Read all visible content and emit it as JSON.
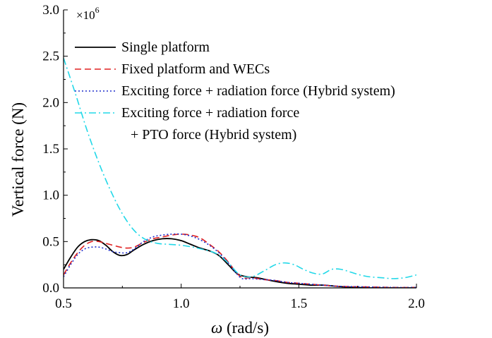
{
  "chart_data": {
    "type": "line",
    "xlabel_symbol": "ω",
    "xlabel_unit": " (rad/s)",
    "ylabel": "Vertical force (N)",
    "xlim": [
      0.5,
      2.0
    ],
    "ylim": [
      0.0,
      3.0
    ],
    "x_ticks": [
      "0.5",
      "1.0",
      "1.5",
      "2.0"
    ],
    "y_ticks": [
      "0.0",
      "0.5",
      "1.0",
      "1.5",
      "2.0",
      "2.5",
      "3.0"
    ],
    "y_multiplier": {
      "base": "×10",
      "exponent": "6"
    },
    "legend_position": "top-left",
    "grid": false,
    "series": [
      {
        "name": "Single platform",
        "color": "#000000",
        "dash": "solid",
        "x": [
          0.5,
          0.53,
          0.56,
          0.59,
          0.62,
          0.65,
          0.68,
          0.71,
          0.74,
          0.77,
          0.8,
          0.84,
          0.88,
          0.92,
          0.96,
          1.0,
          1.04,
          1.08,
          1.12,
          1.16,
          1.2,
          1.24,
          1.28,
          1.32,
          1.36,
          1.4,
          1.45,
          1.5,
          1.55,
          1.6,
          1.65,
          1.7,
          1.75,
          1.8,
          1.9,
          2.0
        ],
        "y": [
          0.2,
          0.33,
          0.44,
          0.5,
          0.52,
          0.51,
          0.46,
          0.39,
          0.35,
          0.36,
          0.41,
          0.47,
          0.51,
          0.53,
          0.53,
          0.51,
          0.47,
          0.43,
          0.4,
          0.35,
          0.25,
          0.15,
          0.12,
          0.11,
          0.09,
          0.07,
          0.05,
          0.04,
          0.03,
          0.03,
          0.02,
          0.01,
          0.005,
          0.0,
          0.0,
          0.0
        ]
      },
      {
        "name": "Fixed platform and WECs",
        "color": "#e02020",
        "dash": "dash",
        "x": [
          0.5,
          0.53,
          0.56,
          0.59,
          0.62,
          0.65,
          0.68,
          0.71,
          0.74,
          0.77,
          0.8,
          0.84,
          0.88,
          0.92,
          0.96,
          1.0,
          1.04,
          1.08,
          1.12,
          1.16,
          1.2,
          1.23,
          1.26,
          1.3,
          1.35,
          1.4,
          1.45,
          1.5,
          1.55,
          1.6,
          1.65,
          1.7,
          1.8,
          1.9,
          2.0
        ],
        "y": [
          0.14,
          0.27,
          0.38,
          0.46,
          0.5,
          0.5,
          0.48,
          0.46,
          0.44,
          0.43,
          0.44,
          0.49,
          0.53,
          0.55,
          0.57,
          0.58,
          0.57,
          0.54,
          0.47,
          0.39,
          0.28,
          0.18,
          0.11,
          0.11,
          0.09,
          0.08,
          0.06,
          0.05,
          0.04,
          0.03,
          0.02,
          0.015,
          0.01,
          0.005,
          0.005
        ]
      },
      {
        "name": "Exciting force + radiation force (Hybrid system)",
        "color": "#1f2ecc",
        "dash": "dot",
        "x": [
          0.5,
          0.53,
          0.56,
          0.59,
          0.62,
          0.65,
          0.68,
          0.71,
          0.74,
          0.77,
          0.8,
          0.84,
          0.88,
          0.92,
          0.96,
          1.0,
          1.04,
          1.08,
          1.12,
          1.16,
          1.2,
          1.23,
          1.26,
          1.3,
          1.35,
          1.4,
          1.45,
          1.5,
          1.55,
          1.6,
          1.65,
          1.7,
          1.8,
          1.9,
          2.0
        ],
        "y": [
          0.12,
          0.25,
          0.36,
          0.42,
          0.44,
          0.44,
          0.42,
          0.39,
          0.38,
          0.38,
          0.42,
          0.5,
          0.55,
          0.57,
          0.58,
          0.58,
          0.56,
          0.52,
          0.46,
          0.38,
          0.27,
          0.17,
          0.1,
          0.1,
          0.09,
          0.08,
          0.06,
          0.05,
          0.04,
          0.03,
          0.02,
          0.015,
          0.01,
          0.005,
          0.005
        ]
      },
      {
        "name": "Exciting force + radiation force",
        "name_line2": "+ PTO force (Hybrid system)",
        "color": "#22d8e8",
        "dash": "dashdot",
        "x": [
          0.5,
          0.55,
          0.6,
          0.65,
          0.7,
          0.75,
          0.8,
          0.85,
          0.9,
          0.95,
          1.0,
          1.05,
          1.1,
          1.15,
          1.2,
          1.25,
          1.3,
          1.35,
          1.4,
          1.44,
          1.48,
          1.52,
          1.56,
          1.6,
          1.64,
          1.68,
          1.72,
          1.76,
          1.8,
          1.85,
          1.9,
          1.95,
          2.0
        ],
        "y": [
          2.48,
          2.1,
          1.7,
          1.35,
          1.05,
          0.8,
          0.62,
          0.52,
          0.48,
          0.47,
          0.46,
          0.44,
          0.41,
          0.37,
          0.27,
          0.14,
          0.12,
          0.18,
          0.25,
          0.27,
          0.25,
          0.2,
          0.16,
          0.15,
          0.2,
          0.2,
          0.17,
          0.14,
          0.12,
          0.11,
          0.1,
          0.11,
          0.14
        ]
      }
    ]
  }
}
